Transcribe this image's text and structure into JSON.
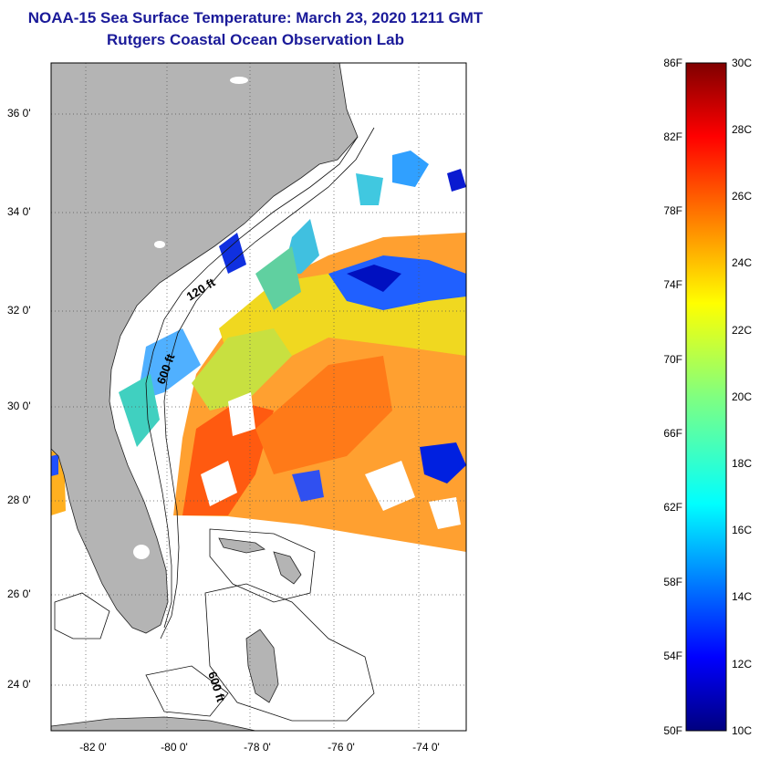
{
  "header": {
    "title": "NOAA-15 Sea Surface Temperature:  March 23, 2020 1211 GMT",
    "subtitle": "Rutgers Coastal Ocean Observation Lab"
  },
  "map": {
    "lat_labels": [
      "36 0'",
      "34 0'",
      "32 0'",
      "30 0'",
      "28 0'",
      "26 0'",
      "24 0'"
    ],
    "lon_labels": [
      "-82 0'",
      "-80 0'",
      "-78 0'",
      "-76 0'",
      "-74 0'"
    ],
    "isobath_labels": [
      "120 ft",
      "600 ft",
      "600 ft"
    ],
    "land_color": "#b4b4b4",
    "water_color": "#ffffff"
  },
  "colorbar": {
    "fahrenheit_labels": [
      "86F",
      "82F",
      "78F",
      "74F",
      "70F",
      "66F",
      "62F",
      "58F",
      "54F",
      "50F"
    ],
    "celsius_labels": [
      "30C",
      "28C",
      "26C",
      "24C",
      "22C",
      "20C",
      "18C",
      "16C",
      "14C",
      "12C",
      "10C"
    ],
    "colormap": "jet"
  }
}
